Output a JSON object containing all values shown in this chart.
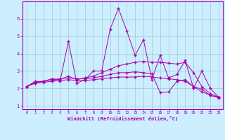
{
  "xlabel": "Windchill (Refroidissement éolien,°C)",
  "bg_color": "#cceeff",
  "line_color": "#aa00aa",
  "grid_color": "#99cccc",
  "xlim": [
    -0.5,
    23.5
  ],
  "ylim": [
    0.8,
    7.0
  ],
  "xticks": [
    0,
    1,
    2,
    3,
    4,
    5,
    6,
    7,
    8,
    9,
    10,
    11,
    12,
    13,
    14,
    15,
    16,
    17,
    18,
    19,
    20,
    21,
    22,
    23
  ],
  "yticks": [
    1,
    2,
    3,
    4,
    5,
    6
  ],
  "curves": [
    [
      2.1,
      2.4,
      2.4,
      2.5,
      2.4,
      4.7,
      2.3,
      2.5,
      3.0,
      3.0,
      5.4,
      6.6,
      5.3,
      3.9,
      4.8,
      2.5,
      3.9,
      2.6,
      2.8,
      3.6,
      2.0,
      3.0,
      2.0,
      1.5
    ],
    [
      2.1,
      2.35,
      2.4,
      2.55,
      2.5,
      2.7,
      2.5,
      2.6,
      2.7,
      2.9,
      3.1,
      3.3,
      3.4,
      3.5,
      3.55,
      3.5,
      3.5,
      3.45,
      3.4,
      3.5,
      2.9,
      2.1,
      1.7,
      1.5
    ],
    [
      2.1,
      2.3,
      2.4,
      2.5,
      2.55,
      2.6,
      2.55,
      2.55,
      2.6,
      2.7,
      2.8,
      2.9,
      2.9,
      2.95,
      2.9,
      2.85,
      1.75,
      1.8,
      2.4,
      2.5,
      2.1,
      1.8,
      1.6,
      1.5
    ],
    [
      2.1,
      2.3,
      2.35,
      2.4,
      2.45,
      2.5,
      2.45,
      2.45,
      2.5,
      2.55,
      2.6,
      2.65,
      2.65,
      2.65,
      2.7,
      2.65,
      2.6,
      2.55,
      2.5,
      2.4,
      2.1,
      1.95,
      1.6,
      1.45
    ]
  ]
}
